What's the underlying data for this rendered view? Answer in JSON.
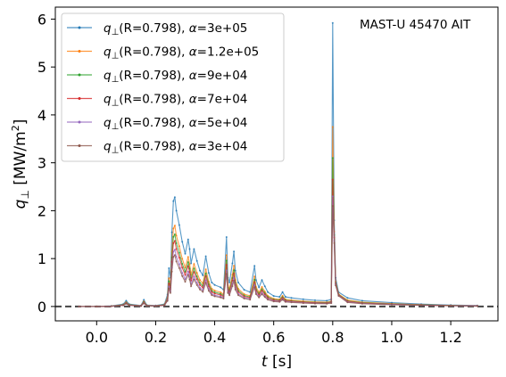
{
  "chart_data": {
    "type": "line",
    "annotation": "MAST-U 45470 AIT",
    "xlabel_italic": "t",
    "xlabel_unit": " [s]",
    "ylabel_main": "q",
    "ylabel_sub": "⊥",
    "ylabel_unit": "  [MW/m",
    "ylabel_sup": "2",
    "ylabel_close": "]",
    "xlim": [
      -0.14,
      1.36
    ],
    "ylim": [
      -0.3,
      6.25
    ],
    "xticks": [
      0.0,
      0.2,
      0.4,
      0.6,
      0.8,
      1.0,
      1.2
    ],
    "xtick_labels": [
      "0.0",
      "0.2",
      "0.4",
      "0.6",
      "0.8",
      "1.0",
      "1.2"
    ],
    "yticks": [
      0,
      1,
      2,
      3,
      4,
      5,
      6
    ],
    "ytick_labels": [
      "0",
      "1",
      "2",
      "3",
      "4",
      "5",
      "6"
    ],
    "zero_line": 0,
    "legend_position": "top-left",
    "base_profile": [
      [
        -0.06,
        0
      ],
      [
        0.0,
        0
      ],
      [
        0.05,
        0.01
      ],
      [
        0.09,
        0.05
      ],
      [
        0.1,
        0.12
      ],
      [
        0.11,
        0.05
      ],
      [
        0.15,
        0.02
      ],
      [
        0.16,
        0.14
      ],
      [
        0.17,
        0.03
      ],
      [
        0.2,
        0.02
      ],
      [
        0.23,
        0.05
      ],
      [
        0.24,
        0.25
      ],
      [
        0.245,
        0.8
      ],
      [
        0.25,
        0.6
      ],
      [
        0.255,
        1.55
      ],
      [
        0.26,
        2.2
      ],
      [
        0.265,
        2.28
      ],
      [
        0.27,
        2.0
      ],
      [
        0.28,
        1.7
      ],
      [
        0.29,
        1.35
      ],
      [
        0.3,
        1.1
      ],
      [
        0.31,
        1.4
      ],
      [
        0.315,
        1.2
      ],
      [
        0.32,
        0.9
      ],
      [
        0.33,
        1.2
      ],
      [
        0.34,
        0.95
      ],
      [
        0.35,
        0.75
      ],
      [
        0.36,
        0.65
      ],
      [
        0.37,
        1.05
      ],
      [
        0.38,
        0.7
      ],
      [
        0.39,
        0.5
      ],
      [
        0.4,
        0.45
      ],
      [
        0.42,
        0.4
      ],
      [
        0.43,
        0.35
      ],
      [
        0.44,
        1.45
      ],
      [
        0.445,
        0.6
      ],
      [
        0.45,
        0.5
      ],
      [
        0.46,
        0.9
      ],
      [
        0.465,
        1.15
      ],
      [
        0.47,
        0.75
      ],
      [
        0.48,
        0.5
      ],
      [
        0.5,
        0.35
      ],
      [
        0.52,
        0.3
      ],
      [
        0.535,
        0.85
      ],
      [
        0.54,
        0.55
      ],
      [
        0.55,
        0.4
      ],
      [
        0.56,
        0.55
      ],
      [
        0.57,
        0.42
      ],
      [
        0.58,
        0.3
      ],
      [
        0.6,
        0.22
      ],
      [
        0.62,
        0.2
      ],
      [
        0.63,
        0.3
      ],
      [
        0.64,
        0.2
      ],
      [
        0.66,
        0.18
      ],
      [
        0.7,
        0.15
      ],
      [
        0.74,
        0.13
      ],
      [
        0.78,
        0.12
      ],
      [
        0.795,
        0.15
      ],
      [
        0.8,
        5.9
      ],
      [
        0.805,
        1.8
      ],
      [
        0.81,
        0.6
      ],
      [
        0.82,
        0.3
      ],
      [
        0.85,
        0.18
      ],
      [
        0.9,
        0.12
      ],
      [
        1.0,
        0.08
      ],
      [
        1.1,
        0.05
      ],
      [
        1.2,
        0.03
      ],
      [
        1.29,
        0.02
      ]
    ],
    "series": [
      {
        "label_main": "q",
        "label_sub": "⊥",
        "label_rest": "(R=0.798), ",
        "label_alpha": "α",
        "label_value": "=3e+05",
        "color": "#1f77b4",
        "scale": 1.0,
        "spike": 5.92
      },
      {
        "label_main": "q",
        "label_sub": "⊥",
        "label_rest": "(R=0.798), ",
        "label_alpha": "α",
        "label_value": "=1.2e+05",
        "color": "#ff7f0e",
        "scale": 0.74,
        "spike": 3.75
      },
      {
        "label_main": "q",
        "label_sub": "⊥",
        "label_rest": "(R=0.798), ",
        "label_alpha": "α",
        "label_value": "=9e+04",
        "color": "#2ca02c",
        "scale": 0.66,
        "spike": 3.1
      },
      {
        "label_main": "q",
        "label_sub": "⊥",
        "label_rest": "(R=0.798), ",
        "label_alpha": "α",
        "label_value": "=7e+04",
        "color": "#d62728",
        "scale": 0.6,
        "spike": 2.65
      },
      {
        "label_main": "q",
        "label_sub": "⊥",
        "label_rest": "(R=0.798), ",
        "label_alpha": "α",
        "label_value": "=5e+04",
        "color": "#9467bd",
        "scale": 0.52,
        "spike": 2.3
      },
      {
        "label_main": "q",
        "label_sub": "⊥",
        "label_rest": "(R=0.798), ",
        "label_alpha": "α",
        "label_value": "=3e+04",
        "color": "#8c564b",
        "scale": 0.47,
        "spike": 2.1
      }
    ]
  }
}
